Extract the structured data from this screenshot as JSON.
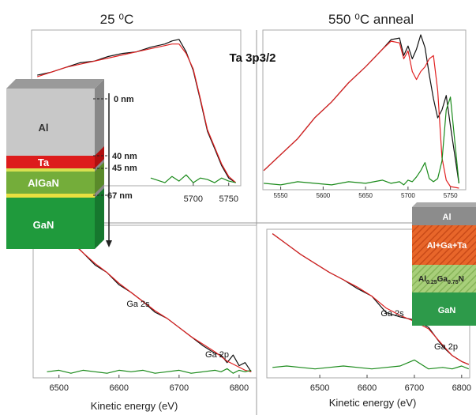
{
  "headers": [
    "25 ⁰C",
    "550 ⁰C anneal"
  ],
  "label": "Ta 3p3/2",
  "diagrams": {
    "as_deposited": {
      "layers": [
        "Al",
        "Ta",
        "AlGaN",
        "GaN"
      ],
      "depths": [
        "0 nm",
        "40 nm",
        "45 nm",
        "67 nm"
      ]
    },
    "annealed": {
      "layers": [
        "Al",
        "Al+Ga+Ta",
        "GaN"
      ],
      "alloy_parts": [
        "Al",
        "0.25",
        "Ga",
        "0.75",
        "N"
      ]
    }
  },
  "chart_data": [
    {
      "type": "line",
      "xlim": [
        5472,
        5767
      ],
      "xticks": [
        5700,
        5750
      ],
      "ylim": [
        0,
        1
      ],
      "x": [
        5480,
        5500,
        5520,
        5540,
        5560,
        5580,
        5600,
        5620,
        5640,
        5660,
        5670,
        5680,
        5690,
        5700,
        5710,
        5720,
        5730,
        5740,
        5750,
        5760
      ],
      "series": [
        {
          "color": "#111111",
          "values": [
            0.71,
            0.73,
            0.76,
            0.79,
            0.8,
            0.83,
            0.85,
            0.86,
            0.89,
            0.91,
            0.93,
            0.94,
            0.86,
            0.74,
            0.55,
            0.35,
            0.24,
            0.13,
            0.05,
            0.02
          ]
        },
        {
          "color": "#e02020",
          "values": [
            0.7,
            0.73,
            0.76,
            0.78,
            0.8,
            0.82,
            0.84,
            0.86,
            0.88,
            0.9,
            0.91,
            0.91,
            0.85,
            0.75,
            0.56,
            0.36,
            0.25,
            0.14,
            0.06,
            0.02
          ]
        },
        {
          "color": "#1a8a1a",
          "values": [
            null,
            null,
            null,
            null,
            null,
            null,
            null,
            null,
            0.05,
            0.02,
            0.06,
            0.03,
            0.07,
            0.02,
            0.05,
            0.04,
            0.02,
            0.05,
            0.03,
            0.02
          ]
        }
      ]
    },
    {
      "type": "line",
      "xlim": [
        5529,
        5768
      ],
      "xticks": [
        5550,
        5600,
        5650,
        5700,
        5750
      ],
      "ylim": [
        0,
        1
      ],
      "x": [
        5530,
        5550,
        5570,
        5590,
        5610,
        5630,
        5650,
        5670,
        5680,
        5690,
        5695,
        5700,
        5705,
        5710,
        5715,
        5720,
        5725,
        5730,
        5735,
        5740,
        5745,
        5750,
        5760
      ],
      "series": [
        {
          "color": "#111111",
          "values": [
            0.12,
            0.22,
            0.32,
            0.45,
            0.55,
            0.67,
            0.77,
            0.88,
            0.94,
            0.95,
            0.84,
            0.9,
            0.82,
            0.88,
            0.97,
            0.89,
            0.72,
            0.57,
            0.45,
            0.5,
            0.59,
            0.4,
            0.04
          ]
        },
        {
          "color": "#e02020",
          "values": [
            0.12,
            0.22,
            0.32,
            0.45,
            0.55,
            0.67,
            0.77,
            0.88,
            0.93,
            0.92,
            0.82,
            0.87,
            0.74,
            0.69,
            0.74,
            0.77,
            0.82,
            0.84,
            0.62,
            0.2,
            0.06,
            0.02,
            0.01
          ]
        },
        {
          "color": "#1a8a1a",
          "values": [
            0.04,
            0.03,
            0.05,
            0.04,
            0.03,
            0.05,
            0.04,
            0.06,
            0.04,
            0.05,
            0.03,
            0.06,
            0.05,
            0.08,
            0.12,
            0.17,
            0.07,
            0.05,
            0.07,
            0.18,
            0.5,
            0.58,
            0.04
          ]
        }
      ]
    },
    {
      "type": "line",
      "xlim": [
        6457,
        6829
      ],
      "xticks": [
        6500,
        6600,
        6700,
        6800
      ],
      "ylim": [
        0,
        1
      ],
      "xlabel": "Kinetic energy (eV)",
      "annotations": [
        "Ga 2s",
        "Ga 2p"
      ],
      "x": [
        6480,
        6500,
        6520,
        6540,
        6560,
        6580,
        6600,
        6620,
        6640,
        6660,
        6680,
        6700,
        6720,
        6740,
        6760,
        6770,
        6780,
        6790,
        6800,
        6810,
        6820
      ],
      "series": [
        {
          "color": "#111111",
          "values": [
            1.0,
            0.97,
            0.9,
            0.82,
            0.74,
            0.69,
            0.61,
            0.56,
            0.5,
            0.43,
            0.39,
            0.33,
            0.27,
            0.21,
            0.16,
            0.15,
            0.1,
            0.15,
            0.08,
            0.1,
            0.04
          ]
        },
        {
          "color": "#e02020",
          "values": [
            1.0,
            0.96,
            0.89,
            0.82,
            0.75,
            0.69,
            0.62,
            0.56,
            0.5,
            0.44,
            0.39,
            0.33,
            0.27,
            0.22,
            0.17,
            0.14,
            0.11,
            0.09,
            0.07,
            0.05,
            0.04
          ]
        },
        {
          "color": "#1a8a1a",
          "values": [
            0.04,
            0.05,
            0.03,
            0.05,
            0.04,
            0.03,
            0.05,
            0.04,
            0.05,
            0.03,
            0.04,
            0.05,
            0.03,
            0.04,
            0.05,
            0.04,
            0.06,
            0.03,
            0.05,
            0.04,
            0.05
          ]
        }
      ]
    },
    {
      "type": "line",
      "xlim": [
        6388,
        6817
      ],
      "xticks": [
        6500,
        6600,
        6700,
        6800
      ],
      "ylim": [
        0,
        1
      ],
      "xlabel": "Kinetic energy (eV)",
      "annotations": [
        "Ga 2s",
        "Ga 2p"
      ],
      "x": [
        6400,
        6430,
        6460,
        6490,
        6520,
        6550,
        6580,
        6610,
        6640,
        6670,
        6700,
        6730,
        6760,
        6780,
        6800,
        6815
      ],
      "series": [
        {
          "color": "#111111",
          "values": [
            0.97,
            0.9,
            0.83,
            0.77,
            0.71,
            0.66,
            0.6,
            0.55,
            0.44,
            0.41,
            0.39,
            0.34,
            0.21,
            0.15,
            0.11,
            0.09
          ]
        },
        {
          "color": "#e02020",
          "values": [
            0.97,
            0.9,
            0.83,
            0.77,
            0.71,
            0.66,
            0.61,
            0.55,
            0.47,
            0.42,
            0.38,
            0.33,
            0.22,
            0.15,
            0.11,
            0.09
          ]
        },
        {
          "color": "#1a8a1a",
          "values": [
            0.07,
            0.08,
            0.07,
            0.06,
            0.07,
            0.08,
            0.07,
            0.06,
            0.07,
            0.08,
            0.12,
            0.06,
            0.07,
            0.06,
            0.08,
            0.06
          ]
        }
      ]
    }
  ]
}
